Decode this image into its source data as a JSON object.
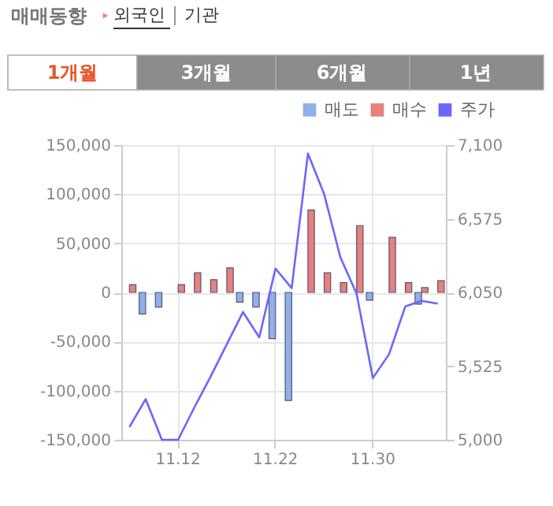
{
  "chart_data": {
    "type": "bar",
    "categories": [
      null,
      null,
      null,
      "11.12",
      null,
      null,
      null,
      null,
      null,
      "11.22",
      null,
      null,
      null,
      null,
      null,
      "11.30",
      null,
      null,
      null,
      null
    ],
    "series": [
      {
        "name": "매도",
        "color": "#8fb0e8",
        "values": [
          null,
          -22000,
          -15000,
          null,
          null,
          null,
          null,
          -10000,
          -15000,
          -47000,
          -110000,
          null,
          null,
          null,
          null,
          -8000,
          null,
          null,
          -12000,
          null
        ]
      },
      {
        "name": "매수",
        "color": "#e8807c",
        "values": [
          8000,
          null,
          null,
          8000,
          20000,
          13000,
          25000,
          null,
          null,
          null,
          null,
          84000,
          20000,
          10000,
          68000,
          null,
          56000,
          10000,
          5000,
          12000
        ]
      },
      {
        "name": "주가",
        "type": "line",
        "axis": "y2",
        "color": "#6b66ff",
        "values": [
          5090,
          5290,
          5000,
          5000,
          5230,
          5450,
          5680,
          5910,
          5730,
          6220,
          6080,
          7040,
          6750,
          6300,
          6040,
          5440,
          5610,
          5950,
          5990,
          5970
        ]
      }
    ],
    "ylim": [
      -150000,
      150000
    ],
    "yticks": [
      {
        "value": -150000,
        "label": "-150,000"
      },
      {
        "value": -100000,
        "label": "-100,000"
      },
      {
        "value": -50000,
        "label": "-50,000"
      },
      0,
      {
        "value": 50000,
        "label": "50,000"
      },
      {
        "value": 100000,
        "label": "100,000"
      },
      {
        "value": 150000,
        "label": "150,000"
      }
    ],
    "y2lim": [
      5000,
      7100
    ],
    "y2ticks": [
      {
        "value": 5000,
        "label": "5,000"
      },
      {
        "value": 5525,
        "label": "5,525"
      },
      {
        "value": 6050,
        "label": "6,050"
      },
      {
        "value": 6575,
        "label": "6,575"
      },
      {
        "value": 7100,
        "label": "7,100"
      }
    ],
    "grid": true,
    "legend": "top right",
    "annotations": [
      "매매동향",
      "외국인",
      "기관",
      "1개월",
      "3개월",
      "6개월",
      "1년"
    ]
  }
}
